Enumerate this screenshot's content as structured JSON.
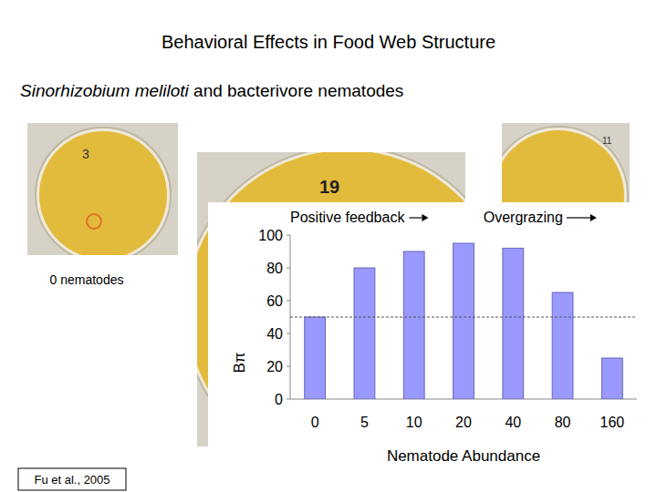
{
  "slide": {
    "title": "Behavioral Effects in Food Web Structure",
    "subtitle_species": "Sinorhizobium meliloti",
    "subtitle_rest": "and bacterivore nematodes",
    "photo_caption": "0 nematodes",
    "citation": "Fu et al., 2005",
    "dish_labels": [
      "3",
      "19",
      "11"
    ]
  },
  "chart_data": {
    "type": "bar",
    "categories": [
      "0",
      "5",
      "10",
      "20",
      "40",
      "80",
      "160"
    ],
    "values": [
      50,
      80,
      90,
      95,
      92,
      65,
      25
    ],
    "color": "#9999ff",
    "ylim": [
      0,
      100
    ],
    "yticks": [
      0,
      20,
      40,
      60,
      80,
      100
    ],
    "xlabel": "Nematode Abundance",
    "ylabel": "Bπ",
    "annotations": [
      "Positive feedback",
      "Overgrazing"
    ],
    "hline": 50,
    "grid": false
  }
}
